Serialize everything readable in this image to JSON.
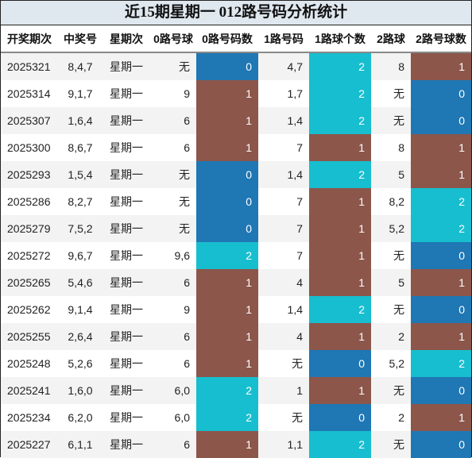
{
  "title": "近15期星期一 012路号码分析统计",
  "headers": [
    "开奖期次",
    "中奖号",
    "星期次",
    "0路号球",
    "0路号码数",
    "1路号码",
    "1路球个数",
    "2路球",
    "2路号球数"
  ],
  "colors": {
    "count_0": "#1f77b4",
    "count_1": "#8c564b",
    "count_2": "#17becf"
  },
  "rows": [
    {
      "period": "2025321",
      "numbers": "8,4,7",
      "weekday": "星期一",
      "r0": "无",
      "c0": "0",
      "r1": "4,7",
      "c1": "2",
      "r2": "8",
      "c2": "1"
    },
    {
      "period": "2025314",
      "numbers": "9,1,7",
      "weekday": "星期一",
      "r0": "9",
      "c0": "1",
      "r1": "1,7",
      "c1": "2",
      "r2": "无",
      "c2": "0"
    },
    {
      "period": "2025307",
      "numbers": "1,6,4",
      "weekday": "星期一",
      "r0": "6",
      "c0": "1",
      "r1": "1,4",
      "c1": "2",
      "r2": "无",
      "c2": "0"
    },
    {
      "period": "2025300",
      "numbers": "8,6,7",
      "weekday": "星期一",
      "r0": "6",
      "c0": "1",
      "r1": "7",
      "c1": "1",
      "r2": "8",
      "c2": "1"
    },
    {
      "period": "2025293",
      "numbers": "1,5,4",
      "weekday": "星期一",
      "r0": "无",
      "c0": "0",
      "r1": "1,4",
      "c1": "2",
      "r2": "5",
      "c2": "1"
    },
    {
      "period": "2025286",
      "numbers": "8,2,7",
      "weekday": "星期一",
      "r0": "无",
      "c0": "0",
      "r1": "7",
      "c1": "1",
      "r2": "8,2",
      "c2": "2"
    },
    {
      "period": "2025279",
      "numbers": "7,5,2",
      "weekday": "星期一",
      "r0": "无",
      "c0": "0",
      "r1": "7",
      "c1": "1",
      "r2": "5,2",
      "c2": "2"
    },
    {
      "period": "2025272",
      "numbers": "9,6,7",
      "weekday": "星期一",
      "r0": "9,6",
      "c0": "2",
      "r1": "7",
      "c1": "1",
      "r2": "无",
      "c2": "0"
    },
    {
      "period": "2025265",
      "numbers": "5,4,6",
      "weekday": "星期一",
      "r0": "6",
      "c0": "1",
      "r1": "4",
      "c1": "1",
      "r2": "5",
      "c2": "1"
    },
    {
      "period": "2025262",
      "numbers": "9,1,4",
      "weekday": "星期一",
      "r0": "9",
      "c0": "1",
      "r1": "1,4",
      "c1": "2",
      "r2": "无",
      "c2": "0"
    },
    {
      "period": "2025255",
      "numbers": "2,6,4",
      "weekday": "星期一",
      "r0": "6",
      "c0": "1",
      "r1": "4",
      "c1": "1",
      "r2": "2",
      "c2": "1"
    },
    {
      "period": "2025248",
      "numbers": "5,2,6",
      "weekday": "星期一",
      "r0": "6",
      "c0": "1",
      "r1": "无",
      "c1": "0",
      "r2": "5,2",
      "c2": "2"
    },
    {
      "period": "2025241",
      "numbers": "1,6,0",
      "weekday": "星期一",
      "r0": "6,0",
      "c0": "2",
      "r1": "1",
      "c1": "1",
      "r2": "无",
      "c2": "0"
    },
    {
      "period": "2025234",
      "numbers": "6,2,0",
      "weekday": "星期一",
      "r0": "6,0",
      "c0": "2",
      "r1": "无",
      "c1": "0",
      "r2": "2",
      "c2": "1"
    },
    {
      "period": "2025227",
      "numbers": "6,1,1",
      "weekday": "星期一",
      "r0": "6",
      "c0": "1",
      "r1": "1,1",
      "c1": "2",
      "r2": "无",
      "c2": "0"
    }
  ]
}
